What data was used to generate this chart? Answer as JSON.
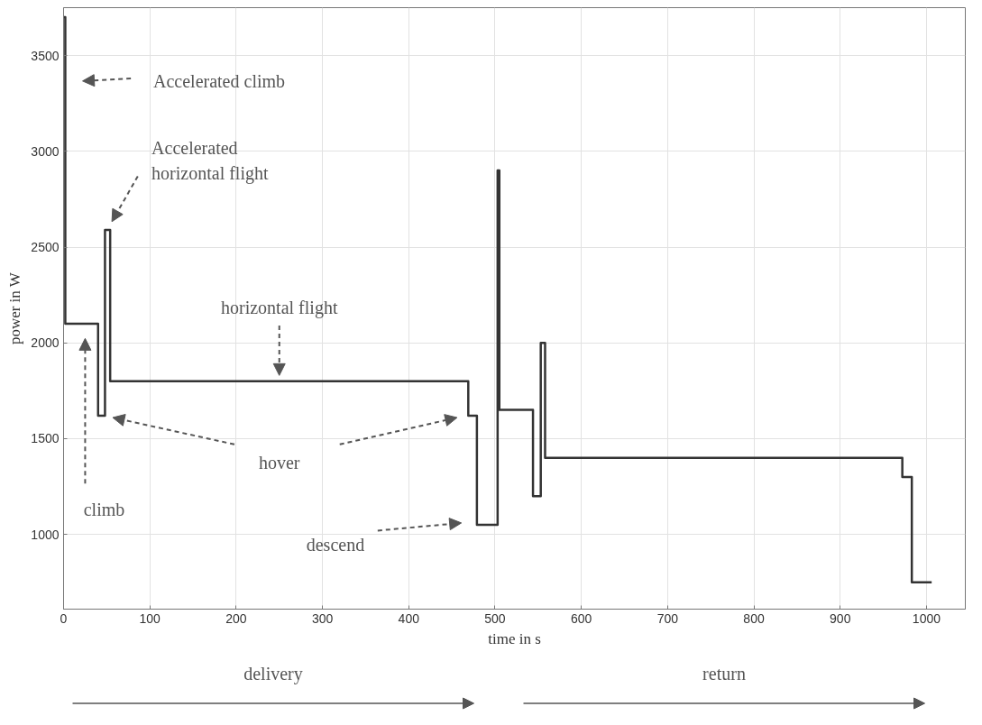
{
  "chart_data": {
    "type": "step",
    "xlabel": "time in s",
    "ylabel": "power in W",
    "x": [
      0,
      2,
      40,
      48,
      54,
      469,
      479,
      503,
      505,
      544,
      553,
      558,
      972,
      983,
      1006
    ],
    "series": [
      {
        "color": "#333333",
        "values": [
          3700,
          2100,
          1620,
          2590,
          1800,
          1620,
          1050,
          2900,
          1650,
          1200,
          2000,
          1400,
          1300,
          750,
          750
        ]
      }
    ],
    "xlim": [
      0,
      1045
    ],
    "ylim": [
      610,
      3750
    ],
    "xticks": [
      0,
      100,
      200,
      300,
      400,
      500,
      600,
      700,
      800,
      900,
      1000
    ],
    "yticks": [
      1000,
      1500,
      2000,
      2500,
      3000,
      3500
    ],
    "grid": true,
    "marker": "none",
    "line_style": "solid",
    "annotations": [
      "Accelerated climb",
      "Accelerated\nhorizontal flight",
      "horizontal flight",
      "hover",
      "climb",
      "descend",
      "delivery",
      "return"
    ]
  }
}
